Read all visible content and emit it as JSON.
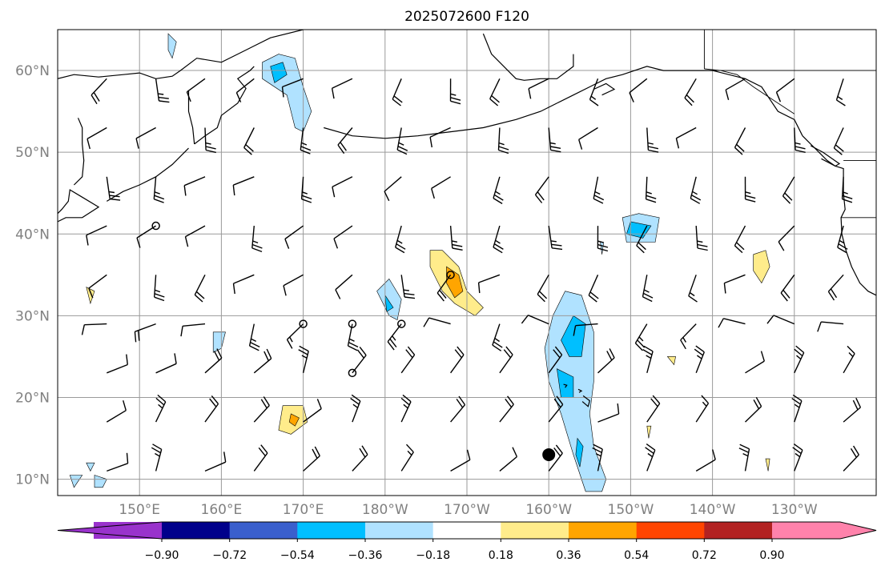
{
  "title": "2025072600 F120",
  "map": {
    "projection": "PlateCarree",
    "lon_range": [
      140,
      240
    ],
    "lat_range": [
      8,
      65
    ],
    "grid": true,
    "lat_ticks": [
      {
        "value": 10,
        "label": "10°N"
      },
      {
        "value": 20,
        "label": "20°N"
      },
      {
        "value": 30,
        "label": "30°N"
      },
      {
        "value": 40,
        "label": "40°N"
      },
      {
        "value": 50,
        "label": "50°N"
      },
      {
        "value": 60,
        "label": "60°N"
      }
    ],
    "lon_ticks": [
      {
        "value": 150,
        "label": "150°E"
      },
      {
        "value": 160,
        "label": "160°E"
      },
      {
        "value": 170,
        "label": "170°E"
      },
      {
        "value": 180,
        "label": "180°W"
      },
      {
        "value": 190,
        "label": "170°W"
      },
      {
        "value": 200,
        "label": "160°W"
      },
      {
        "value": 210,
        "label": "150°W"
      },
      {
        "value": 220,
        "label": "140°W"
      },
      {
        "value": 230,
        "label": "130°W"
      }
    ]
  },
  "colorbar": {
    "extend": "both",
    "colors": [
      "#9932cc",
      "#00008b",
      "#3a5fcd",
      "#00bfff",
      "#b0e2ff",
      "#ffffff",
      "#ffec8b",
      "#ffa500",
      "#ff4500",
      "#b22222",
      "#ff82ab"
    ],
    "tick_labels": [
      "−0.90",
      "−0.72",
      "−0.54",
      "−0.36",
      "−0.18",
      "0.18",
      "0.36",
      "0.54",
      "0.72",
      "0.90"
    ]
  },
  "contour_fills": [
    {
      "name": "negative-anomaly-north-pacific-60n",
      "color": "#b0e2ff",
      "points": [
        [
          165,
          61
        ],
        [
          167,
          62
        ],
        [
          169,
          61.5
        ],
        [
          170,
          58
        ],
        [
          171,
          55
        ],
        [
          170,
          52.5
        ],
        [
          169,
          53
        ],
        [
          168,
          57
        ],
        [
          165,
          59
        ]
      ]
    },
    {
      "name": "negative-anomaly-core-60n",
      "color": "#00bfff",
      "points": [
        [
          166,
          60.5
        ],
        [
          167.5,
          61
        ],
        [
          168,
          59.5
        ],
        [
          166.5,
          58.5
        ]
      ]
    },
    {
      "name": "negative-anomaly-small-62n",
      "color": "#b0e2ff",
      "points": [
        [
          153.5,
          64.5
        ],
        [
          154.5,
          63.5
        ],
        [
          154,
          61.5
        ],
        [
          153.5,
          62.5
        ]
      ]
    },
    {
      "name": "negative-anomaly-40n-150w",
      "color": "#b0e2ff",
      "points": [
        [
          209,
          42
        ],
        [
          211,
          42.5
        ],
        [
          213.5,
          42
        ],
        [
          213,
          39
        ],
        [
          209.5,
          39
        ]
      ]
    },
    {
      "name": "negative-anomaly-core-40n",
      "color": "#00bfff",
      "points": [
        [
          210,
          41.5
        ],
        [
          212.5,
          41
        ],
        [
          211.5,
          39.5
        ],
        [
          209.5,
          40
        ]
      ]
    },
    {
      "name": "negative-anomaly-33n-180",
      "color": "#b0e2ff",
      "points": [
        [
          180.5,
          34.5
        ],
        [
          182,
          32
        ],
        [
          181.5,
          29.5
        ],
        [
          180.5,
          30
        ],
        [
          179,
          33
        ]
      ]
    },
    {
      "name": "negative-anomaly-core-33n",
      "color": "#00bfff",
      "points": [
        [
          180,
          32.5
        ],
        [
          181,
          31
        ],
        [
          180.2,
          30.5
        ]
      ]
    },
    {
      "name": "negative-anomaly-27n-164e",
      "color": "#b0e2ff",
      "points": [
        [
          159,
          28
        ],
        [
          160.5,
          28
        ],
        [
          160,
          26
        ],
        [
          159,
          25.5
        ]
      ]
    },
    {
      "name": "negative-anomaly-hawaii-band",
      "color": "#b0e2ff",
      "points": [
        [
          202,
          33
        ],
        [
          204,
          32.5
        ],
        [
          205.5,
          28
        ],
        [
          205.5,
          22
        ],
        [
          205,
          18
        ],
        [
          205.5,
          14
        ],
        [
          207,
          10
        ],
        [
          206.5,
          8.5
        ],
        [
          204.5,
          8.5
        ],
        [
          203,
          13
        ],
        [
          201.5,
          18
        ],
        [
          200,
          22
        ],
        [
          199.5,
          26
        ],
        [
          200.5,
          30
        ]
      ]
    },
    {
      "name": "negative-anomaly-hawaii-core-upper",
      "color": "#00bfff",
      "points": [
        [
          203,
          30
        ],
        [
          204.5,
          29
        ],
        [
          204,
          25
        ],
        [
          202.5,
          25
        ],
        [
          201.5,
          27
        ]
      ]
    },
    {
      "name": "negative-anomaly-hawaii-core-lower",
      "color": "#00bfff",
      "points": [
        [
          201,
          23.5
        ],
        [
          203,
          22.5
        ],
        [
          203,
          20
        ],
        [
          201.5,
          20
        ]
      ]
    },
    {
      "name": "negative-anomaly-hawaii-core-south",
      "color": "#00bfff",
      "points": [
        [
          203.5,
          15
        ],
        [
          204.2,
          14
        ],
        [
          203.8,
          11.5
        ],
        [
          203.3,
          13
        ]
      ]
    },
    {
      "name": "negative-anomaly-10n-east",
      "color": "#b0e2ff",
      "points": [
        [
          141.5,
          10.5
        ],
        [
          143,
          10.5
        ],
        [
          142,
          9
        ]
      ]
    },
    {
      "name": "negative-anomaly-10n-east-2",
      "color": "#b0e2ff",
      "points": [
        [
          144.5,
          10.5
        ],
        [
          146,
          10
        ],
        [
          145.5,
          9
        ],
        [
          144.5,
          9
        ]
      ]
    },
    {
      "name": "negative-anomaly-12n-small",
      "color": "#b0e2ff",
      "points": [
        [
          143.5,
          12
        ],
        [
          144.5,
          12
        ],
        [
          144,
          11
        ]
      ]
    },
    {
      "name": "negative-anomaly-38n-155w",
      "color": "#b0e2ff",
      "points": [
        [
          206.3,
          39
        ],
        [
          206.7,
          39
        ],
        [
          206.5,
          37.5
        ]
      ]
    },
    {
      "name": "positive-anomaly-35n-172w",
      "color": "#ffec8b",
      "points": [
        [
          185.5,
          38
        ],
        [
          187,
          38
        ],
        [
          189,
          36
        ],
        [
          190,
          33
        ],
        [
          192,
          31
        ],
        [
          191,
          30
        ],
        [
          188.5,
          31.5
        ],
        [
          187,
          33
        ],
        [
          185.5,
          36
        ]
      ]
    },
    {
      "name": "positive-anomaly-core-35n",
      "color": "#ffa500",
      "points": [
        [
          187.5,
          36
        ],
        [
          189,
          35
        ],
        [
          189.5,
          33
        ],
        [
          188.5,
          32.2
        ],
        [
          187.5,
          34
        ]
      ]
    },
    {
      "name": "positive-anomaly-18n-170e",
      "color": "#ffec8b",
      "points": [
        [
          167.5,
          19
        ],
        [
          170,
          19
        ],
        [
          170.5,
          17
        ],
        [
          168.5,
          15.5
        ],
        [
          167,
          16
        ]
      ]
    },
    {
      "name": "positive-anomaly-core-18n",
      "color": "#ffa500",
      "points": [
        [
          168.5,
          18
        ],
        [
          169.5,
          17.5
        ],
        [
          169,
          16.5
        ],
        [
          168.3,
          17
        ]
      ]
    },
    {
      "name": "positive-anomaly-36n-135w",
      "color": "#ffec8b",
      "points": [
        [
          225,
          37.5
        ],
        [
          226.5,
          38
        ],
        [
          227,
          36
        ],
        [
          226,
          34
        ],
        [
          225,
          35.5
        ]
      ]
    },
    {
      "name": "positive-anomaly-24n-141w",
      "color": "#ffec8b",
      "points": [
        [
          214.5,
          25
        ],
        [
          215.5,
          25
        ],
        [
          215.3,
          24
        ]
      ]
    },
    {
      "name": "positive-anomaly-32n-141e",
      "color": "#ffec8b",
      "points": [
        [
          143.5,
          33.5
        ],
        [
          144.5,
          33
        ],
        [
          144,
          31.5
        ]
      ]
    },
    {
      "name": "positive-anomaly-16n-151w",
      "color": "#ffec8b",
      "points": [
        [
          212,
          16.5
        ],
        [
          212.5,
          16.5
        ],
        [
          212.2,
          15
        ]
      ]
    },
    {
      "name": "positive-anomaly-12n-135w",
      "color": "#ffec8b",
      "points": [
        [
          226.5,
          12.5
        ],
        [
          227,
          12.5
        ],
        [
          226.8,
          11
        ]
      ]
    }
  ],
  "coastlines": [
    {
      "name": "russian-far-east-coast",
      "points": [
        [
          140,
          59
        ],
        [
          142,
          59.5
        ],
        [
          145,
          59.2
        ],
        [
          148,
          59.5
        ],
        [
          150,
          59.7
        ],
        [
          152,
          59
        ],
        [
          154,
          59.3
        ],
        [
          155,
          60
        ],
        [
          157,
          61.5
        ],
        [
          160,
          61
        ],
        [
          162,
          62
        ],
        [
          163,
          62.5
        ],
        [
          164,
          63
        ],
        [
          166,
          64
        ],
        [
          170,
          65
        ]
      ]
    },
    {
      "name": "kamchatka-west-coast",
      "points": [
        [
          156,
          57.5
        ],
        [
          156,
          55
        ],
        [
          156.5,
          53
        ],
        [
          156.7,
          51
        ]
      ]
    },
    {
      "name": "kamchatka-east-coast",
      "points": [
        [
          156.7,
          51
        ],
        [
          158,
          52
        ],
        [
          159.5,
          53
        ],
        [
          160,
          54.5
        ],
        [
          162,
          56
        ],
        [
          163,
          57.8
        ],
        [
          162,
          59
        ],
        [
          163.5,
          60
        ],
        [
          164,
          60.5
        ]
      ]
    },
    {
      "name": "kuril-islands",
      "points": [
        [
          156,
          50.5
        ],
        [
          154,
          48.5
        ],
        [
          152,
          47
        ],
        [
          150,
          46
        ],
        [
          148,
          45.2
        ],
        [
          146,
          44
        ]
      ]
    },
    {
      "name": "hokkaido-honshu",
      "points": [
        [
          140,
          41.5
        ],
        [
          141,
          42
        ],
        [
          143,
          42
        ],
        [
          145,
          43.3
        ],
        [
          143,
          44.5
        ],
        [
          141.5,
          45.4
        ],
        [
          141.3,
          44
        ],
        [
          140.5,
          43
        ],
        [
          140,
          42.5
        ]
      ]
    },
    {
      "name": "sakhalin",
      "points": [
        [
          142,
          46
        ],
        [
          143,
          47
        ],
        [
          143.2,
          49
        ],
        [
          143,
          51
        ],
        [
          143,
          53
        ],
        [
          142.5,
          54.2
        ]
      ]
    },
    {
      "name": "aleutian-chain",
      "points": [
        [
          172.5,
          53
        ],
        [
          176,
          52
        ],
        [
          180,
          51.7
        ],
        [
          184,
          52
        ],
        [
          188,
          52.5
        ],
        [
          192,
          53
        ],
        [
          196,
          54
        ],
        [
          199,
          55
        ],
        [
          201,
          56
        ]
      ]
    },
    {
      "name": "alaska-peninsula",
      "points": [
        [
          201,
          56
        ],
        [
          203,
          57
        ],
        [
          205,
          58
        ],
        [
          207,
          59
        ],
        [
          209,
          59.5
        ],
        [
          212,
          60.5
        ],
        [
          214,
          60
        ],
        [
          216,
          60
        ],
        [
          220,
          60
        ],
        [
          224,
          59
        ],
        [
          226,
          58
        ],
        [
          227,
          56.5
        ],
        [
          228,
          55
        ],
        [
          230,
          54
        ],
        [
          231,
          52
        ]
      ]
    },
    {
      "name": "alaska-west-coast",
      "points": [
        [
          192,
          64.5
        ],
        [
          193,
          62
        ],
        [
          195,
          60
        ],
        [
          196,
          59
        ],
        [
          197,
          58.8
        ],
        [
          199,
          59
        ],
        [
          201,
          59
        ],
        [
          203,
          60.5
        ],
        [
          203,
          62
        ]
      ]
    },
    {
      "name": "kodiak-island",
      "points": [
        [
          205.5,
          57.7
        ],
        [
          207,
          58.4
        ],
        [
          208,
          57.7
        ],
        [
          206.5,
          57
        ]
      ]
    },
    {
      "name": "bc-coast",
      "points": [
        [
          231,
          52
        ],
        [
          232,
          51
        ],
        [
          233,
          50
        ],
        [
          234,
          49
        ],
        [
          235,
          48.3
        ],
        [
          236,
          48
        ],
        [
          236,
          47
        ],
        [
          236,
          45
        ],
        [
          236.2,
          43
        ],
        [
          235.7,
          42
        ],
        [
          235.8,
          40
        ],
        [
          236.3,
          38
        ],
        [
          237,
          36
        ],
        [
          238,
          34
        ],
        [
          239,
          33
        ],
        [
          240,
          32.5
        ]
      ]
    },
    {
      "name": "vancouver-island",
      "points": [
        [
          232,
          50.8
        ],
        [
          233.5,
          50
        ],
        [
          235.5,
          48.6
        ],
        [
          235,
          48.3
        ],
        [
          233.3,
          49.2
        ]
      ]
    },
    {
      "name": "hawaii-big-island",
      "points": [
        [
          204.2,
          20.2
        ],
        [
          205,
          19.6
        ],
        [
          204.8,
          18.9
        ],
        [
          204.1,
          19.5
        ]
      ]
    },
    {
      "name": "hawaii-maui",
      "points": [
        [
          203.6,
          21.0
        ],
        [
          204,
          20.8
        ],
        [
          203.7,
          20.6
        ]
      ]
    },
    {
      "name": "hawaii-oahu",
      "points": [
        [
          201.8,
          21.6
        ],
        [
          202.2,
          21.5
        ],
        [
          202,
          21.2
        ]
      ]
    }
  ],
  "borders": [
    {
      "name": "us-canada-141w",
      "points": [
        [
          219,
          65
        ],
        [
          219,
          60.2
        ]
      ]
    },
    {
      "name": "us-canada-panhandle",
      "points": [
        [
          219,
          60.2
        ],
        [
          221,
          60
        ],
        [
          223,
          59.5
        ],
        [
          225,
          58
        ],
        [
          228,
          56
        ],
        [
          230,
          54.7
        ]
      ]
    },
    {
      "name": "us-canada-49n",
      "points": [
        [
          236,
          49
        ],
        [
          240,
          49
        ]
      ]
    },
    {
      "name": "us-states-42n",
      "points": [
        [
          235.7,
          42
        ],
        [
          240,
          42
        ]
      ]
    },
    {
      "name": "yukon-bc",
      "points": [
        [
          220,
          60
        ],
        [
          240,
          60
        ]
      ]
    }
  ],
  "circles": [
    {
      "name": "calm-marker",
      "lon": 152,
      "lat": 41
    },
    {
      "name": "calm-marker",
      "lon": 170,
      "lat": 29
    },
    {
      "name": "calm-marker",
      "lon": 176,
      "lat": 29
    },
    {
      "name": "calm-marker",
      "lon": 182,
      "lat": 29
    },
    {
      "name": "calm-marker",
      "lon": 176,
      "lat": 23
    },
    {
      "name": "calm-marker",
      "lon": 188,
      "lat": 35
    }
  ],
  "dots": [
    {
      "name": "reference-dot",
      "lon": 200,
      "lat": 13
    }
  ],
  "barb_grid": {
    "lon_start": 146,
    "lon_step": 6,
    "lon_count": 17,
    "lat_start": 11,
    "lat_step": 6,
    "lat_count": 9
  }
}
